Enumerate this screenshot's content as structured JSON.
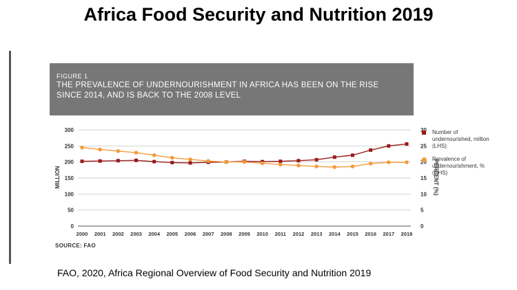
{
  "slide_title": "Africa Food Security and Nutrition 2019",
  "figure": {
    "label": "FIGURE 1",
    "title": "THE PREVALENCE OF UNDERNOURISHMENT IN AFRICA HAS BEEN ON THE RISE SINCE 2014, AND IS BACK TO THE 2008 LEVEL",
    "source": "SOURCE: FAO"
  },
  "caption": "FAO, 2020, Africa Regional Overview of Food Security and Nutrition 2019",
  "colors": {
    "header_bg": "#777777",
    "series_lhs": "#9a1a1a",
    "series_rhs": "#f39b3a"
  },
  "chart_data": {
    "type": "line",
    "x": [
      "2000",
      "2001",
      "2002",
      "2003",
      "2004",
      "2005",
      "2006",
      "2007",
      "2008",
      "2009",
      "2010",
      "2011",
      "2012",
      "2013",
      "2014",
      "2015",
      "2016",
      "2017",
      "2018"
    ],
    "ylabel_left": "MILLION",
    "ylabel_right": "PERCENT (%)",
    "ylim_left": [
      0,
      300
    ],
    "ylim_right": [
      0,
      30
    ],
    "yticks_left": [
      "0",
      "50",
      "100",
      "150",
      "200",
      "250",
      "300"
    ],
    "yticks_right": [
      "0",
      "5",
      "10",
      "15",
      "20",
      "25",
      "30"
    ],
    "grid": true,
    "legend_position": "right",
    "series": [
      {
        "name": "Number of undernourished, million (LHS)",
        "axis": "left",
        "marker": "square",
        "values": [
          202,
          203,
          204,
          205,
          201,
          198,
          197,
          199,
          200,
          202,
          201,
          202,
          204,
          207,
          215,
          221,
          237,
          250,
          256
        ]
      },
      {
        "name": "Prevalence of undernourishment, % (RHS)",
        "axis": "right",
        "marker": "circle",
        "values": [
          24.5,
          23.9,
          23.4,
          22.9,
          22.1,
          21.3,
          20.8,
          20.3,
          20.0,
          20.0,
          19.6,
          19.2,
          18.9,
          18.6,
          18.4,
          18.6,
          19.5,
          19.9,
          19.9
        ]
      }
    ]
  }
}
